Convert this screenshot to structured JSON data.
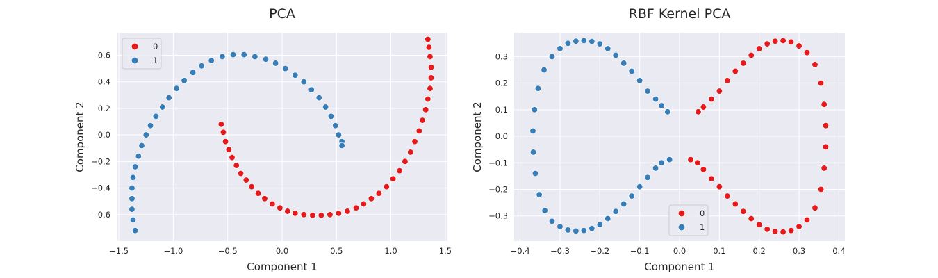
{
  "chart_data": [
    {
      "type": "scatter",
      "title": "PCA",
      "xlabel": "Component 1",
      "ylabel": "Component 2",
      "xlim": [
        -1.52,
        1.52
      ],
      "ylim": [
        -0.8,
        0.77
      ],
      "xticks": [
        -1.5,
        -1.0,
        -0.5,
        0.0,
        0.5,
        1.0,
        1.5
      ],
      "xtick_labels": [
        "−1.5",
        "−1.0",
        "−0.5",
        "0.0",
        "0.5",
        "1.0",
        "1.5"
      ],
      "yticks": [
        -0.6,
        -0.4,
        -0.2,
        0.0,
        0.2,
        0.4,
        0.6
      ],
      "ytick_labels": [
        "−0.6",
        "−0.4",
        "−0.2",
        "0.0",
        "0.2",
        "0.4",
        "0.6"
      ],
      "grid": true,
      "legend_position": "upper-left",
      "legend": [
        {
          "label": "0",
          "color": "#e41a1c"
        },
        {
          "label": "1",
          "color": "#377eb8"
        }
      ],
      "series": [
        {
          "name": "0",
          "color": "#e41a1c",
          "points": [
            [
              -0.56,
              0.08
            ],
            [
              -0.54,
              0.02
            ],
            [
              -0.52,
              -0.05
            ],
            [
              -0.49,
              -0.11
            ],
            [
              -0.46,
              -0.17
            ],
            [
              -0.42,
              -0.23
            ],
            [
              -0.38,
              -0.29
            ],
            [
              -0.33,
              -0.34
            ],
            [
              -0.28,
              -0.39
            ],
            [
              -0.22,
              -0.44
            ],
            [
              -0.16,
              -0.48
            ],
            [
              -0.09,
              -0.52
            ],
            [
              -0.02,
              -0.55
            ],
            [
              0.05,
              -0.575
            ],
            [
              0.12,
              -0.59
            ],
            [
              0.2,
              -0.6
            ],
            [
              0.28,
              -0.605
            ],
            [
              0.36,
              -0.605
            ],
            [
              0.44,
              -0.6
            ],
            [
              0.52,
              -0.59
            ],
            [
              0.6,
              -0.575
            ],
            [
              0.68,
              -0.55
            ],
            [
              0.75,
              -0.52
            ],
            [
              0.82,
              -0.48
            ],
            [
              0.89,
              -0.44
            ],
            [
              0.96,
              -0.39
            ],
            [
              1.02,
              -0.33
            ],
            [
              1.08,
              -0.27
            ],
            [
              1.13,
              -0.2
            ],
            [
              1.18,
              -0.13
            ],
            [
              1.22,
              -0.05
            ],
            [
              1.26,
              0.03
            ],
            [
              1.29,
              0.11
            ],
            [
              1.32,
              0.19
            ],
            [
              1.34,
              0.27
            ],
            [
              1.36,
              0.35
            ],
            [
              1.37,
              0.43
            ],
            [
              1.37,
              0.51
            ],
            [
              1.36,
              0.59
            ],
            [
              1.35,
              0.66
            ],
            [
              1.34,
              0.72
            ]
          ]
        },
        {
          "name": "1",
          "color": "#377eb8",
          "points": [
            [
              -1.35,
              -0.72
            ],
            [
              -1.37,
              -0.64
            ],
            [
              -1.38,
              -0.56
            ],
            [
              -1.38,
              -0.48
            ],
            [
              -1.38,
              -0.4
            ],
            [
              -1.37,
              -0.32
            ],
            [
              -1.35,
              -0.24
            ],
            [
              -1.32,
              -0.16
            ],
            [
              -1.29,
              -0.08
            ],
            [
              -1.25,
              0.0
            ],
            [
              -1.21,
              0.07
            ],
            [
              -1.16,
              0.14
            ],
            [
              -1.1,
              0.21
            ],
            [
              -1.04,
              0.28
            ],
            [
              -0.97,
              0.35
            ],
            [
              -0.9,
              0.41
            ],
            [
              -0.82,
              0.47
            ],
            [
              -0.74,
              0.52
            ],
            [
              -0.65,
              0.56
            ],
            [
              -0.55,
              0.59
            ],
            [
              -0.45,
              0.605
            ],
            [
              -0.35,
              0.605
            ],
            [
              -0.25,
              0.59
            ],
            [
              -0.15,
              0.57
            ],
            [
              -0.06,
              0.54
            ],
            [
              0.03,
              0.5
            ],
            [
              0.12,
              0.45
            ],
            [
              0.2,
              0.4
            ],
            [
              0.27,
              0.34
            ],
            [
              0.34,
              0.28
            ],
            [
              0.4,
              0.21
            ],
            [
              0.45,
              0.14
            ],
            [
              0.49,
              0.07
            ],
            [
              0.52,
              0.0
            ],
            [
              0.55,
              -0.05
            ],
            [
              0.55,
              -0.08
            ]
          ]
        }
      ]
    },
    {
      "type": "scatter",
      "title": "RBF Kernel PCA",
      "xlabel": "Component 1",
      "ylabel": "Component 2",
      "xlim": [
        -0.415,
        0.415
      ],
      "ylim": [
        -0.395,
        0.39
      ],
      "xticks": [
        -0.4,
        -0.3,
        -0.2,
        -0.1,
        0.0,
        0.1,
        0.2,
        0.3,
        0.4
      ],
      "xtick_labels": [
        "−0.4",
        "−0.3",
        "−0.2",
        "−0.1",
        "0.0",
        "0.1",
        "0.2",
        "0.3",
        "0.4"
      ],
      "yticks": [
        -0.3,
        -0.2,
        -0.1,
        0.0,
        0.1,
        0.2,
        0.3
      ],
      "ytick_labels": [
        "−0.3",
        "−0.2",
        "−0.1",
        "0.0",
        "0.1",
        "0.2",
        "0.3"
      ],
      "grid": true,
      "legend_position": "lower-center",
      "legend": [
        {
          "label": "0",
          "color": "#e41a1c"
        },
        {
          "label": "1",
          "color": "#377eb8"
        }
      ],
      "series": [
        {
          "name": "0",
          "color": "#e41a1c",
          "points": [
            [
              0.047,
              0.092
            ],
            [
              0.06,
              0.11
            ],
            [
              0.08,
              0.14
            ],
            [
              0.1,
              0.17
            ],
            [
              0.12,
              0.21
            ],
            [
              0.14,
              0.245
            ],
            [
              0.16,
              0.275
            ],
            [
              0.18,
              0.305
            ],
            [
              0.2,
              0.33
            ],
            [
              0.22,
              0.348
            ],
            [
              0.24,
              0.358
            ],
            [
              0.26,
              0.36
            ],
            [
              0.28,
              0.355
            ],
            [
              0.3,
              0.34
            ],
            [
              0.32,
              0.315
            ],
            [
              0.34,
              0.27
            ],
            [
              0.355,
              0.2
            ],
            [
              0.363,
              0.12
            ],
            [
              0.367,
              0.04
            ],
            [
              0.367,
              -0.04
            ],
            [
              0.363,
              -0.12
            ],
            [
              0.355,
              -0.2
            ],
            [
              0.34,
              -0.27
            ],
            [
              0.32,
              -0.315
            ],
            [
              0.3,
              -0.34
            ],
            [
              0.28,
              -0.355
            ],
            [
              0.26,
              -0.36
            ],
            [
              0.24,
              -0.358
            ],
            [
              0.22,
              -0.35
            ],
            [
              0.2,
              -0.333
            ],
            [
              0.18,
              -0.31
            ],
            [
              0.16,
              -0.283
            ],
            [
              0.14,
              -0.255
            ],
            [
              0.12,
              -0.225
            ],
            [
              0.1,
              -0.19
            ],
            [
              0.08,
              -0.16
            ],
            [
              0.06,
              -0.125
            ],
            [
              0.045,
              -0.1
            ],
            [
              0.028,
              -0.088
            ]
          ]
        },
        {
          "name": "1",
          "color": "#377eb8",
          "points": [
            [
              -0.03,
              0.092
            ],
            [
              -0.045,
              0.115
            ],
            [
              -0.06,
              0.14
            ],
            [
              -0.08,
              0.17
            ],
            [
              -0.1,
              0.21
            ],
            [
              -0.12,
              0.245
            ],
            [
              -0.14,
              0.275
            ],
            [
              -0.16,
              0.305
            ],
            [
              -0.18,
              0.33
            ],
            [
              -0.2,
              0.348
            ],
            [
              -0.22,
              0.357
            ],
            [
              -0.24,
              0.36
            ],
            [
              -0.26,
              0.358
            ],
            [
              -0.28,
              0.35
            ],
            [
              -0.3,
              0.33
            ],
            [
              -0.32,
              0.3
            ],
            [
              -0.34,
              0.25
            ],
            [
              -0.355,
              0.18
            ],
            [
              -0.364,
              0.1
            ],
            [
              -0.368,
              0.02
            ],
            [
              -0.367,
              -0.06
            ],
            [
              -0.362,
              -0.14
            ],
            [
              -0.352,
              -0.22
            ],
            [
              -0.338,
              -0.28
            ],
            [
              -0.32,
              -0.32
            ],
            [
              -0.3,
              -0.34
            ],
            [
              -0.28,
              -0.353
            ],
            [
              -0.26,
              -0.357
            ],
            [
              -0.24,
              -0.355
            ],
            [
              -0.22,
              -0.347
            ],
            [
              -0.2,
              -0.333
            ],
            [
              -0.18,
              -0.31
            ],
            [
              -0.16,
              -0.283
            ],
            [
              -0.14,
              -0.255
            ],
            [
              -0.12,
              -0.225
            ],
            [
              -0.1,
              -0.19
            ],
            [
              -0.08,
              -0.155
            ],
            [
              -0.06,
              -0.12
            ],
            [
              -0.045,
              -0.1
            ],
            [
              -0.025,
              -0.088
            ]
          ]
        }
      ]
    }
  ]
}
